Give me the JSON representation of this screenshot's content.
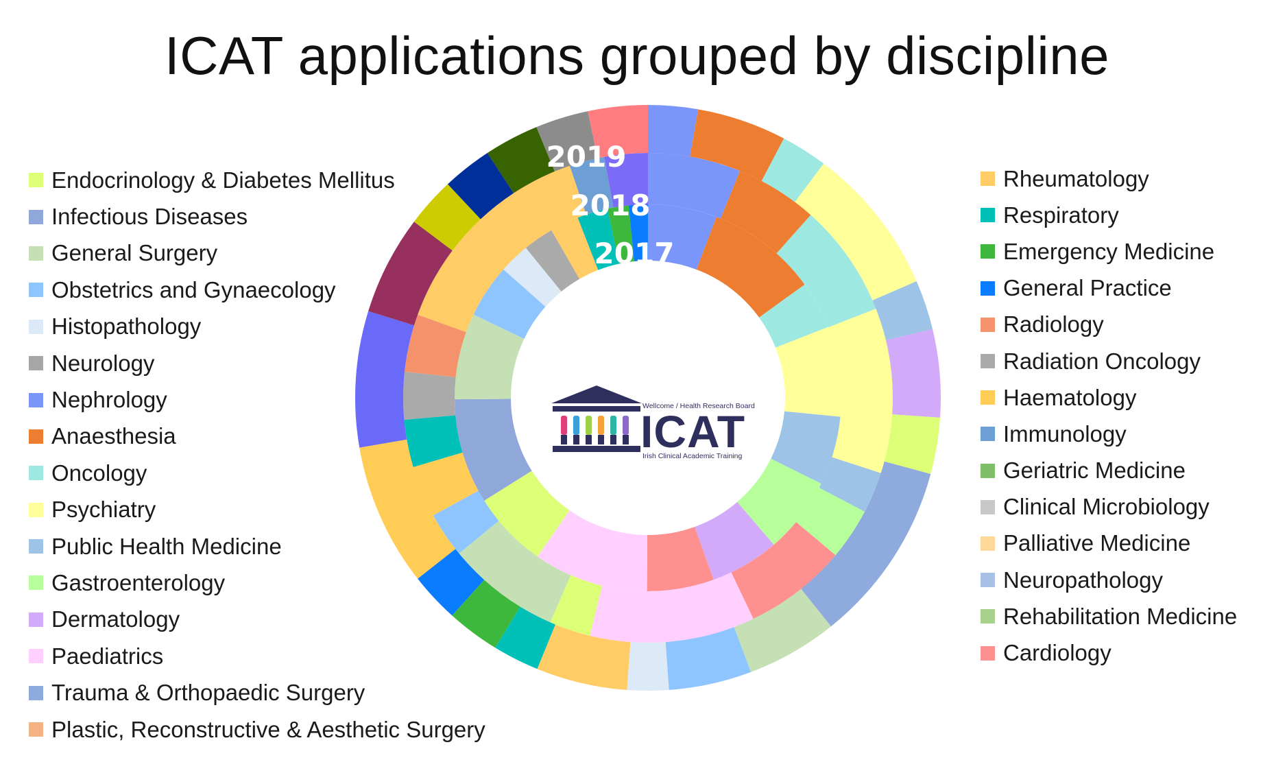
{
  "chart_data": {
    "type": "donut",
    "title": "ICAT applications grouped by discipline",
    "ring_labels": [
      "2017",
      "2018",
      "2019"
    ],
    "disciplines": [
      {
        "name": "Endocrinology & Diabetes Mellitus",
        "color": "#ddff77"
      },
      {
        "name": "Infectious Diseases",
        "color": "#8fa7d9"
      },
      {
        "name": "General Surgery",
        "color": "#c5e0b4"
      },
      {
        "name": "Obstetrics and Gynaecology",
        "color": "#8ec5ff"
      },
      {
        "name": "Histopathology",
        "color": "#dce9f7"
      },
      {
        "name": "Neurology",
        "color": "#a6a6a6"
      },
      {
        "name": "Nephrology",
        "color": "#7b96fa"
      },
      {
        "name": "Anaesthesia",
        "color": "#ed7d31"
      },
      {
        "name": "Oncology",
        "color": "#9ee8e2"
      },
      {
        "name": "Psychiatry",
        "color": "#ffff99"
      },
      {
        "name": "Public Health Medicine",
        "color": "#9dc3e6"
      },
      {
        "name": "Gastroenterology",
        "color": "#b6ff9a"
      },
      {
        "name": "Dermatology",
        "color": "#d3aafa"
      },
      {
        "name": "Paediatrics",
        "color": "#ffcfff"
      },
      {
        "name": "Trauma & Orthopaedic Surgery",
        "color": "#8faadc"
      },
      {
        "name": "Plastic, Reconstructive & Aesthetic Surgery",
        "color": "#f4b183"
      },
      {
        "name": "Rheumatology",
        "color": "#ffcc66"
      },
      {
        "name": "Respiratory",
        "color": "#00c0b8"
      },
      {
        "name": "Emergency Medicine",
        "color": "#3db83d"
      },
      {
        "name": "General Practice",
        "color": "#0a7cff"
      },
      {
        "name": "Radiology",
        "color": "#f4936b"
      },
      {
        "name": "Radiation Oncology",
        "color": "#aaaaaa"
      },
      {
        "name": "Haematology",
        "color": "#ffcc55"
      },
      {
        "name": "Immunology",
        "color": "#6e9fd4"
      },
      {
        "name": "Geriatric Medicine",
        "color": "#7fbf6a"
      },
      {
        "name": "Clinical Microbiology",
        "color": "#c8c8c8"
      },
      {
        "name": "Palliative Medicine",
        "color": "#ffd99a"
      },
      {
        "name": "Neuropathology",
        "color": "#a9c1e6"
      },
      {
        "name": "Rehabilitation Medicine",
        "color": "#a9d18e"
      },
      {
        "name": "Cardiology",
        "color": "#ff9090"
      }
    ],
    "rings": [
      {
        "year": "2017",
        "segments": [
          {
            "color": "#7b96fa",
            "value": 3.6
          },
          {
            "color": "#ed7d31",
            "value": 5.8
          },
          {
            "color": "#9ee8e2",
            "value": 2.5
          },
          {
            "color": "#ffff99",
            "value": 4.7
          },
          {
            "color": "#9dc3e6",
            "value": 3.6
          },
          {
            "color": "#b6ff9a",
            "value": 4.0
          },
          {
            "color": "#d3aafa",
            "value": 3.6
          },
          {
            "color": "#ff9090",
            "value": 3.5
          },
          {
            "color": "#ffcfff",
            "value": 6.0
          },
          {
            "color": "#ddff77",
            "value": 4.0
          },
          {
            "color": "#8fa7d9",
            "value": 5.5
          },
          {
            "color": "#c5e0b4",
            "value": 4.5
          },
          {
            "color": "#8ec5ff",
            "value": 2.8
          },
          {
            "color": "#dce9f7",
            "value": 1.6
          },
          {
            "color": "#aaaaaa",
            "value": 1.6
          },
          {
            "color": "#ffcc66",
            "value": 1.5
          },
          {
            "color": "#00c0b8",
            "value": 1.6
          },
          {
            "color": "#3db83d",
            "value": 1.1
          },
          {
            "color": "#0a7cff",
            "value": 1.0
          }
        ]
      },
      {
        "year": "2018",
        "segments": [
          {
            "color": "#7b96fa",
            "value": 4.5
          },
          {
            "color": "#ed7d31",
            "value": 4.0
          },
          {
            "color": "#9ee8e2",
            "value": 5.5
          },
          {
            "color": "#ffff99",
            "value": 8.0
          },
          {
            "color": "#9dc3e6",
            "value": 2.0
          },
          {
            "color": "#b6ff9a",
            "value": 2.5
          },
          {
            "color": "#ff9090",
            "value": 5.0
          },
          {
            "color": "#ffcfff",
            "value": 8.0
          },
          {
            "color": "#ddff77",
            "value": 2.0
          },
          {
            "color": "#c5e0b4",
            "value": 5.5
          },
          {
            "color": "#8ec5ff",
            "value": 2.2
          },
          {
            "color": "#ffcc55",
            "value": 2.5
          },
          {
            "color": "#00c0b8",
            "value": 2.3
          },
          {
            "color": "#aaaaaa",
            "value": 2.3
          },
          {
            "color": "#f4936b",
            "value": 2.8
          },
          {
            "color": "#ffcc66",
            "value": 10.5
          },
          {
            "color": "#6e9fd4",
            "value": 1.7
          },
          {
            "color": "#7b6cf7",
            "value": 2.1
          }
        ]
      },
      {
        "year": "2019",
        "segments": [
          {
            "color": "#7b96fa",
            "value": 3.0
          },
          {
            "color": "#ed7d31",
            "value": 5.4
          },
          {
            "color": "#9ee8e2",
            "value": 2.8
          },
          {
            "color": "#ffff99",
            "value": 9.0
          },
          {
            "color": "#9dc3e6",
            "value": 3.0
          },
          {
            "color": "#d3aafa",
            "value": 5.3
          },
          {
            "color": "#ddff77",
            "value": 3.4
          },
          {
            "color": "#8faadc",
            "value": 11.0
          },
          {
            "color": "#c5e0b4",
            "value": 5.5
          },
          {
            "color": "#8ec5ff",
            "value": 5.0
          },
          {
            "color": "#dce9f7",
            "value": 2.5
          },
          {
            "color": "#ffcc66",
            "value": 5.5
          },
          {
            "color": "#00c0b8",
            "value": 2.8
          },
          {
            "color": "#3db83d",
            "value": 3.2
          },
          {
            "color": "#0a7cff",
            "value": 3.0
          },
          {
            "color": "#ffcc55",
            "value": 8.6
          },
          {
            "color": "#6a6afa",
            "value": 8.2
          },
          {
            "color": "#98305f",
            "value": 6.0
          },
          {
            "color": "#cccc00",
            "value": 3.0
          },
          {
            "color": "#002f99",
            "value": 3.0
          },
          {
            "color": "#376400",
            "value": 3.3
          },
          {
            "color": "#8c8c8c",
            "value": 3.2
          },
          {
            "color": "#ff7c80",
            "value": 3.6
          }
        ]
      }
    ],
    "legend_left": [
      {
        "label": "Endocrinology & Diabetes Mellitus",
        "color": "#ddff77"
      },
      {
        "label": "Infectious Diseases",
        "color": "#8fa7d9"
      },
      {
        "label": "General Surgery",
        "color": "#c5e0b4"
      },
      {
        "label": "Obstetrics and Gynaecology",
        "color": "#8ec5ff"
      },
      {
        "label": "Histopathology",
        "color": "#dce9f7"
      },
      {
        "label": "Neurology",
        "color": "#a6a6a6"
      },
      {
        "label": "Nephrology",
        "color": "#7b96fa"
      },
      {
        "label": "Anaesthesia",
        "color": "#ed7d31"
      },
      {
        "label": "Oncology",
        "color": "#9ee8e2"
      },
      {
        "label": "Psychiatry",
        "color": "#ffff99"
      },
      {
        "label": "Public Health Medicine",
        "color": "#9dc3e6"
      },
      {
        "label": "Gastroenterology",
        "color": "#b6ff9a"
      },
      {
        "label": "Dermatology",
        "color": "#d3aafa"
      },
      {
        "label": "Paediatrics",
        "color": "#ffcfff"
      },
      {
        "label": "Trauma & Orthopaedic Surgery",
        "color": "#8faadc"
      },
      {
        "label": "Plastic, Reconstructive & Aesthetic Surgery",
        "color": "#f4b183"
      }
    ],
    "legend_right": [
      {
        "label": "Rheumatology",
        "color": "#ffcc66"
      },
      {
        "label": "Respiratory",
        "color": "#00c0b8"
      },
      {
        "label": "Emergency Medicine",
        "color": "#3db83d"
      },
      {
        "label": "General Practice",
        "color": "#0a7cff"
      },
      {
        "label": "Radiology",
        "color": "#f4936b"
      },
      {
        "label": "Radiation Oncology",
        "color": "#aaaaaa"
      },
      {
        "label": "Haematology",
        "color": "#ffcc55"
      },
      {
        "label": "Immunology",
        "color": "#6e9fd4"
      },
      {
        "label": "Geriatric Medicine",
        "color": "#7fbf6a"
      },
      {
        "label": "Clinical Microbiology",
        "color": "#c8c8c8"
      },
      {
        "label": "Palliative Medicine",
        "color": "#ffd99a"
      },
      {
        "label": "Neuropathology",
        "color": "#a9c1e6"
      },
      {
        "label": "Rehabilitation Medicine",
        "color": "#a9d18e"
      },
      {
        "label": "Cardiology",
        "color": "#ff9090"
      }
    ]
  },
  "logo": {
    "top_text": "Wellcome / Health Research Board",
    "name": "ICAT",
    "subtitle": "Irish Clinical Academic Training",
    "color": "#2f2f5e",
    "bar_colors": [
      "#e0407a",
      "#3aa0d8",
      "#9fd04a",
      "#f2a33a",
      "#2fb5a5",
      "#8a6cc8"
    ]
  }
}
